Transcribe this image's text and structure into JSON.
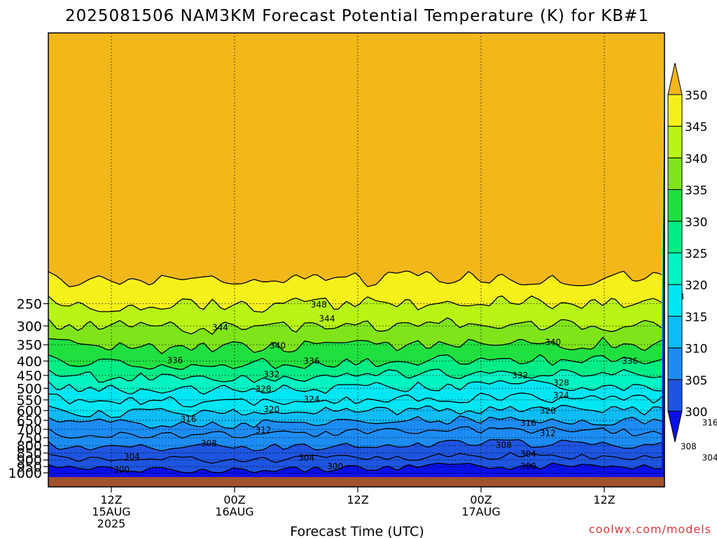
{
  "chart_data": {
    "type": "contour",
    "title": "2025081506 NAM3KM Forecast Potential Temperature (K) for KB#1",
    "xlabel": "Forecast Time (UTC)",
    "ylabel": "",
    "watermark": "coolwx.com/models",
    "y_scale": "log-pressure",
    "y_ticks": [
      250,
      300,
      350,
      400,
      450,
      500,
      550,
      600,
      650,
      700,
      750,
      800,
      850,
      900,
      950,
      1000
    ],
    "x_ticks": [
      {
        "line1": "12Z",
        "line2": "15AUG",
        "line3": "2025"
      },
      {
        "line1": "00Z",
        "line2": "16AUG",
        "line3": ""
      },
      {
        "line1": "12Z",
        "line2": "",
        "line3": ""
      },
      {
        "line1": "00Z",
        "line2": "17AUG",
        "line3": ""
      },
      {
        "line1": "12Z",
        "line2": "",
        "line3": ""
      }
    ],
    "colorbar": {
      "levels": [
        300,
        305,
        310,
        315,
        320,
        325,
        330,
        335,
        340,
        345,
        350
      ],
      "colors": [
        "#0a10e8",
        "#1e55e0",
        "#1d8cf2",
        "#0ebcf5",
        "#00e6f2",
        "#00f5c2",
        "#00ec85",
        "#20e040",
        "#7fe41a",
        "#b8f514",
        "#f6f01a",
        "#f2b81a"
      ]
    },
    "contour_labels": [
      {
        "value": "348",
        "time_h": 20.2,
        "p": 252
      },
      {
        "value": "348",
        "time_h": 55,
        "p": 236
      },
      {
        "value": "344",
        "time_h": 10.6,
        "p": 304
      },
      {
        "value": "344",
        "time_h": 21,
        "p": 283
      },
      {
        "value": "344",
        "time_h": 61.5,
        "p": 295
      },
      {
        "value": "340",
        "time_h": 16.2,
        "p": 353
      },
      {
        "value": "340",
        "time_h": 43,
        "p": 343
      },
      {
        "value": "340",
        "time_h": 61.5,
        "p": 353
      },
      {
        "value": "336",
        "time_h": 6.2,
        "p": 398
      },
      {
        "value": "336",
        "time_h": 19.5,
        "p": 400
      },
      {
        "value": "336",
        "time_h": 50.5,
        "p": 400
      },
      {
        "value": "332",
        "time_h": 15.6,
        "p": 446
      },
      {
        "value": "332",
        "time_h": 39.8,
        "p": 450
      },
      {
        "value": "332",
        "time_h": 62,
        "p": 450
      },
      {
        "value": "328",
        "time_h": 14.8,
        "p": 503
      },
      {
        "value": "328",
        "time_h": 43.8,
        "p": 478
      },
      {
        "value": "328",
        "time_h": 62,
        "p": 488
      },
      {
        "value": "324",
        "time_h": 19.5,
        "p": 547
      },
      {
        "value": "324",
        "time_h": 43.8,
        "p": 530
      },
      {
        "value": "324",
        "time_h": 62,
        "p": 547
      },
      {
        "value": "320",
        "time_h": 15.6,
        "p": 594
      },
      {
        "value": "320",
        "time_h": 42.5,
        "p": 601
      },
      {
        "value": "320",
        "time_h": 62,
        "p": 601
      },
      {
        "value": "316",
        "time_h": 7.5,
        "p": 645
      },
      {
        "value": "316",
        "time_h": 40.6,
        "p": 665
      },
      {
        "value": "316",
        "time_h": 58.3,
        "p": 663
      },
      {
        "value": "312",
        "time_h": 14.8,
        "p": 704
      },
      {
        "value": "312",
        "time_h": 42.5,
        "p": 722
      },
      {
        "value": "312",
        "time_h": 62,
        "p": 722
      },
      {
        "value": "308",
        "time_h": 9.5,
        "p": 786
      },
      {
        "value": "308",
        "time_h": 38.2,
        "p": 797
      },
      {
        "value": "308",
        "time_h": 56.2,
        "p": 807
      },
      {
        "value": "304",
        "time_h": 2,
        "p": 877
      },
      {
        "value": "304",
        "time_h": 19,
        "p": 883
      },
      {
        "value": "304",
        "time_h": 40.6,
        "p": 857
      },
      {
        "value": "304",
        "time_h": 58.3,
        "p": 883
      },
      {
        "value": "300",
        "time_h": 1,
        "p": 975
      },
      {
        "value": "300",
        "time_h": 21.8,
        "p": 950
      },
      {
        "value": "300",
        "time_h": 40.6,
        "p": 946
      },
      {
        "value": "300",
        "time_h": 62,
        "p": 962
      }
    ]
  }
}
